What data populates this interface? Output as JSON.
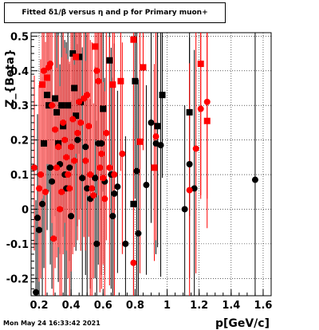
{
  "title": "Fitted δ1/β versus η and p for Primary muon+",
  "timestamp": "Mon May 24 16:33:42 2021",
  "colors": {
    "black_series": "#000000",
    "red_series": "#ff0000",
    "grid": "#000000"
  },
  "chart_data": {
    "type": "scatter",
    "title": "Fitted δ1/β versus η and p for Primary muon+",
    "xlabel": "p[GeV/c]",
    "ylabel": "Z_{Beta}",
    "xlim": [
      0.15,
      1.65
    ],
    "ylim": [
      -0.25,
      0.51
    ],
    "grid": true,
    "x_ticks": [
      "0.2",
      "0.4",
      "0.6",
      "0.8",
      "1",
      "1.2",
      "1.4",
      "1.6"
    ],
    "x_tick_values": [
      0.2,
      0.4,
      0.6,
      0.8,
      1.0,
      1.2,
      1.4,
      1.6
    ],
    "y_ticks": [
      "-0.2",
      "-0.1",
      "0",
      "0.1",
      "0.2",
      "0.3",
      "0.4",
      "0.5"
    ],
    "y_tick_values": [
      -0.2,
      -0.1,
      0,
      0.1,
      0.2,
      0.3,
      0.4,
      0.5
    ],
    "series": [
      {
        "color": "#000000",
        "marker": "mixed",
        "points": [
          {
            "x": 0.18,
            "y": -0.24,
            "m": "circle"
          },
          {
            "x": 0.19,
            "y": -0.025,
            "m": "circle"
          },
          {
            "x": 0.2,
            "y": -0.06,
            "m": "circle"
          },
          {
            "x": 0.22,
            "y": 0.015,
            "m": "circle"
          },
          {
            "x": 0.23,
            "y": 0.19,
            "m": "square"
          },
          {
            "x": 0.25,
            "y": 0.33,
            "m": "square"
          },
          {
            "x": 0.26,
            "y": 0.3,
            "m": "square"
          },
          {
            "x": 0.27,
            "y": 0.12,
            "m": "circle"
          },
          {
            "x": 0.28,
            "y": 0.08,
            "m": "circle"
          },
          {
            "x": 0.3,
            "y": 0.32,
            "m": "square"
          },
          {
            "x": 0.31,
            "y": 0.28,
            "m": "square"
          },
          {
            "x": 0.32,
            "y": 0.19,
            "m": "square"
          },
          {
            "x": 0.33,
            "y": 0.13,
            "m": "circle"
          },
          {
            "x": 0.34,
            "y": 0.3,
            "m": "square"
          },
          {
            "x": 0.35,
            "y": 0.24,
            "m": "square"
          },
          {
            "x": 0.36,
            "y": 0.1,
            "m": "circle"
          },
          {
            "x": 0.37,
            "y": 0.06,
            "m": "circle"
          },
          {
            "x": 0.38,
            "y": 0.3,
            "m": "square"
          },
          {
            "x": 0.39,
            "y": 0.12,
            "m": "circle"
          },
          {
            "x": 0.4,
            "y": -0.02,
            "m": "circle"
          },
          {
            "x": 0.41,
            "y": 0.45,
            "m": "square"
          },
          {
            "x": 0.42,
            "y": 0.35,
            "m": "square"
          },
          {
            "x": 0.43,
            "y": 0.27,
            "m": "square"
          },
          {
            "x": 0.44,
            "y": 0.2,
            "m": "circle"
          },
          {
            "x": 0.45,
            "y": 0.44,
            "m": "square"
          },
          {
            "x": 0.46,
            "y": 0.31,
            "m": "square"
          },
          {
            "x": 0.47,
            "y": 0.09,
            "m": "circle"
          },
          {
            "x": 0.49,
            "y": 0.18,
            "m": "circle"
          },
          {
            "x": 0.5,
            "y": 0.06,
            "m": "circle"
          },
          {
            "x": 0.52,
            "y": 0.03,
            "m": "circle"
          },
          {
            "x": 0.55,
            "y": 0.09,
            "m": "circle"
          },
          {
            "x": 0.56,
            "y": -0.1,
            "m": "circle"
          },
          {
            "x": 0.57,
            "y": 0.19,
            "m": "circle"
          },
          {
            "x": 0.59,
            "y": 0.19,
            "m": "circle"
          },
          {
            "x": 0.6,
            "y": 0.29,
            "m": "square"
          },
          {
            "x": 0.61,
            "y": 0.08,
            "m": "circle"
          },
          {
            "x": 0.64,
            "y": 0.43,
            "m": "square"
          },
          {
            "x": 0.65,
            "y": 0.1,
            "m": "circle"
          },
          {
            "x": 0.66,
            "y": -0.02,
            "m": "circle"
          },
          {
            "x": 0.67,
            "y": 0.045,
            "m": "circle"
          },
          {
            "x": 0.69,
            "y": 0.065,
            "m": "circle"
          },
          {
            "x": 0.74,
            "y": -0.1,
            "m": "circle"
          },
          {
            "x": 0.79,
            "y": 0.015,
            "m": "square"
          },
          {
            "x": 0.8,
            "y": 0.37,
            "m": "square"
          },
          {
            "x": 0.81,
            "y": 0.11,
            "m": "circle"
          },
          {
            "x": 0.82,
            "y": -0.07,
            "m": "circle"
          },
          {
            "x": 0.87,
            "y": 0.07,
            "m": "circle"
          },
          {
            "x": 0.9,
            "y": 0.25,
            "m": "circle"
          },
          {
            "x": 0.93,
            "y": 0.19,
            "m": "circle"
          },
          {
            "x": 0.94,
            "y": 0.24,
            "m": "square"
          },
          {
            "x": 0.96,
            "y": 0.185,
            "m": "circle"
          },
          {
            "x": 0.97,
            "y": 0.33,
            "m": "square"
          },
          {
            "x": 1.11,
            "y": 0.0,
            "m": "circle"
          },
          {
            "x": 1.14,
            "y": 0.28,
            "m": "square"
          },
          {
            "x": 1.14,
            "y": 0.13,
            "m": "circle"
          },
          {
            "x": 1.17,
            "y": 0.06,
            "m": "circle"
          },
          {
            "x": 1.55,
            "y": 0.085,
            "m": "circle"
          }
        ]
      },
      {
        "color": "#ff0000",
        "marker": "mixed",
        "points": [
          {
            "x": 0.17,
            "y": 0.12,
            "m": "circle"
          },
          {
            "x": 0.2,
            "y": 0.06,
            "m": "circle"
          },
          {
            "x": 0.21,
            "y": 0.1,
            "m": "circle"
          },
          {
            "x": 0.22,
            "y": 0.36,
            "m": "square"
          },
          {
            "x": 0.23,
            "y": 0.4,
            "m": "circle"
          },
          {
            "x": 0.24,
            "y": 0.05,
            "m": "circle"
          },
          {
            "x": 0.25,
            "y": 0.38,
            "m": "square"
          },
          {
            "x": 0.26,
            "y": 0.41,
            "m": "circle"
          },
          {
            "x": 0.27,
            "y": 0.42,
            "m": "circle"
          },
          {
            "x": 0.28,
            "y": 0.3,
            "m": "circle"
          },
          {
            "x": 0.29,
            "y": -0.085,
            "m": "circle"
          },
          {
            "x": 0.3,
            "y": 0.23,
            "m": "circle"
          },
          {
            "x": 0.31,
            "y": 0.12,
            "m": "circle"
          },
          {
            "x": 0.32,
            "y": 0.18,
            "m": "circle"
          },
          {
            "x": 0.33,
            "y": 0.0,
            "m": "circle"
          },
          {
            "x": 0.34,
            "y": 0.05,
            "m": "circle"
          },
          {
            "x": 0.35,
            "y": 0.25,
            "m": "circle"
          },
          {
            "x": 0.36,
            "y": 0.2,
            "m": "circle"
          },
          {
            "x": 0.37,
            "y": 0.15,
            "m": "circle"
          },
          {
            "x": 0.38,
            "y": 0.1,
            "m": "circle"
          },
          {
            "x": 0.39,
            "y": 0.06,
            "m": "circle"
          },
          {
            "x": 0.4,
            "y": 0.18,
            "m": "circle"
          },
          {
            "x": 0.41,
            "y": 0.26,
            "m": "circle"
          },
          {
            "x": 0.42,
            "y": 0.14,
            "m": "circle"
          },
          {
            "x": 0.43,
            "y": 0.44,
            "m": "square"
          },
          {
            "x": 0.44,
            "y": 0.22,
            "m": "circle"
          },
          {
            "x": 0.45,
            "y": 0.31,
            "m": "circle"
          },
          {
            "x": 0.46,
            "y": 0.25,
            "m": "circle"
          },
          {
            "x": 0.48,
            "y": 0.32,
            "m": "circle"
          },
          {
            "x": 0.49,
            "y": 0.14,
            "m": "circle"
          },
          {
            "x": 0.5,
            "y": 0.33,
            "m": "circle"
          },
          {
            "x": 0.51,
            "y": 0.24,
            "m": "circle"
          },
          {
            "x": 0.52,
            "y": 0.1,
            "m": "circle"
          },
          {
            "x": 0.53,
            "y": 0.06,
            "m": "circle"
          },
          {
            "x": 0.54,
            "y": 0.04,
            "m": "circle"
          },
          {
            "x": 0.55,
            "y": 0.47,
            "m": "square"
          },
          {
            "x": 0.56,
            "y": 0.4,
            "m": "circle"
          },
          {
            "x": 0.57,
            "y": 0.37,
            "m": "circle"
          },
          {
            "x": 0.58,
            "y": 0.12,
            "m": "circle"
          },
          {
            "x": 0.59,
            "y": 0.16,
            "m": "circle"
          },
          {
            "x": 0.6,
            "y": 0.09,
            "m": "circle"
          },
          {
            "x": 0.61,
            "y": 0.03,
            "m": "circle"
          },
          {
            "x": 0.62,
            "y": 0.22,
            "m": "circle"
          },
          {
            "x": 0.64,
            "y": 0.12,
            "m": "circle"
          },
          {
            "x": 0.66,
            "y": 0.36,
            "m": "square"
          },
          {
            "x": 0.67,
            "y": 0.1,
            "m": "circle"
          },
          {
            "x": 0.71,
            "y": 0.37,
            "m": "square"
          },
          {
            "x": 0.72,
            "y": 0.16,
            "m": "circle"
          },
          {
            "x": 0.79,
            "y": 0.49,
            "m": "square"
          },
          {
            "x": 0.79,
            "y": -0.155,
            "m": "circle"
          },
          {
            "x": 0.83,
            "y": 0.195,
            "m": "square"
          },
          {
            "x": 0.85,
            "y": 0.41,
            "m": "square"
          },
          {
            "x": 0.92,
            "y": 0.12,
            "m": "square"
          },
          {
            "x": 0.93,
            "y": 0.21,
            "m": "circle"
          },
          {
            "x": 1.14,
            "y": 0.055,
            "m": "circle"
          },
          {
            "x": 1.18,
            "y": 0.175,
            "m": "circle"
          },
          {
            "x": 1.21,
            "y": 0.42,
            "m": "square"
          },
          {
            "x": 1.21,
            "y": 0.29,
            "m": "circle"
          },
          {
            "x": 1.25,
            "y": 0.31,
            "m": "circle"
          },
          {
            "x": 1.25,
            "y": 0.255,
            "m": "square"
          }
        ]
      }
    ]
  }
}
